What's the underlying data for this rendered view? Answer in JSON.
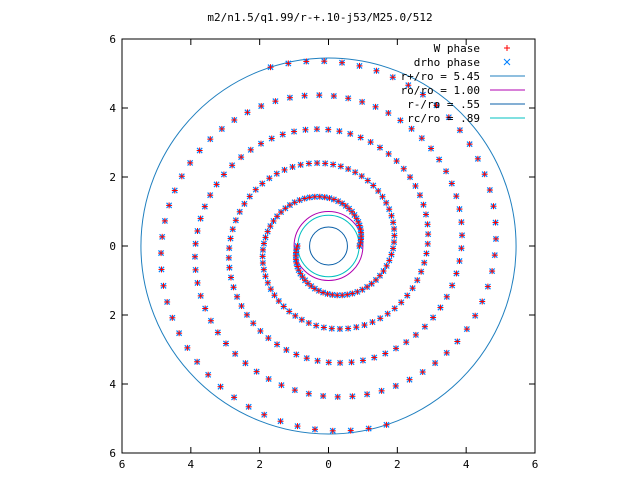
{
  "chart_data": {
    "type": "scatter",
    "title": "m2/n1.5/q1.99/r-+.10-j53/M25.0/512",
    "xlim": [
      -6,
      6
    ],
    "ylim": [
      -6,
      6
    ],
    "x_ticks": [
      "6",
      "4",
      "2",
      "0",
      "2",
      "4",
      "6"
    ],
    "y_ticks": [
      "6",
      "4",
      "2",
      "0",
      "2",
      "4",
      "6"
    ],
    "grid": false,
    "legend_position": "top-right",
    "spiral": {
      "arms": 2,
      "r_start": 0.9,
      "r_end": 5.45,
      "turns": 2.3
    },
    "series": [
      {
        "name": "W phase",
        "marker": "plus",
        "color": "#ff0000"
      },
      {
        "name": "drho phase",
        "marker": "cross",
        "color": "#0080ff"
      }
    ],
    "circles": [
      {
        "label": "r+/ro = 5.45",
        "r": 5.45,
        "color": "#1f7fbf"
      },
      {
        "label": "ro/ro = 1.00",
        "r": 1.0,
        "color": "#b000b0"
      },
      {
        "label": "r-/ro = .55",
        "r": 0.55,
        "color": "#0a5fa8"
      },
      {
        "label": "rc/ro = .89",
        "r": 0.89,
        "color": "#00c0c0"
      }
    ]
  }
}
